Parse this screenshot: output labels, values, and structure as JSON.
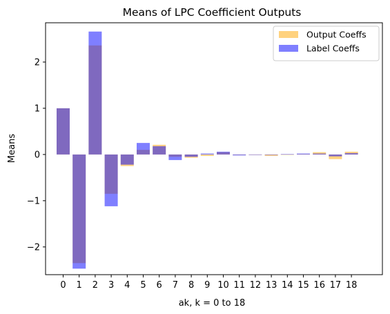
{
  "chart_data": {
    "type": "bar",
    "title": "Means of LPC Coefficient Outputs",
    "xlabel": "ak, k = 0 to 18",
    "ylabel": "Means",
    "categories": [
      "0",
      "1",
      "2",
      "3",
      "4",
      "5",
      "6",
      "7",
      "8",
      "9",
      "10",
      "11",
      "12",
      "13",
      "14",
      "15",
      "16",
      "17",
      "18"
    ],
    "ylim": [
      -2.6,
      2.85
    ],
    "yticks": [
      -2,
      -1,
      0,
      1,
      2
    ],
    "ytick_labels": [
      "−2",
      "−1",
      "0",
      "1",
      "2"
    ],
    "grid": false,
    "legend_position": "top-right",
    "series": [
      {
        "name": "Output Coeffs",
        "color": "#ffa500",
        "alpha": 0.5,
        "values": [
          1.0,
          -2.35,
          2.36,
          -0.85,
          -0.25,
          0.1,
          0.21,
          -0.05,
          -0.07,
          -0.03,
          0.05,
          -0.01,
          -0.01,
          -0.03,
          0.0,
          0.01,
          0.05,
          -0.1,
          0.06
        ]
      },
      {
        "name": "Label Coeffs",
        "color": "#0000ff",
        "alpha": 0.5,
        "values": [
          1.0,
          -2.47,
          2.66,
          -1.12,
          -0.22,
          0.25,
          0.18,
          -0.12,
          -0.05,
          0.02,
          0.06,
          -0.02,
          -0.01,
          -0.01,
          0.01,
          0.02,
          0.02,
          -0.04,
          0.03
        ]
      }
    ]
  }
}
